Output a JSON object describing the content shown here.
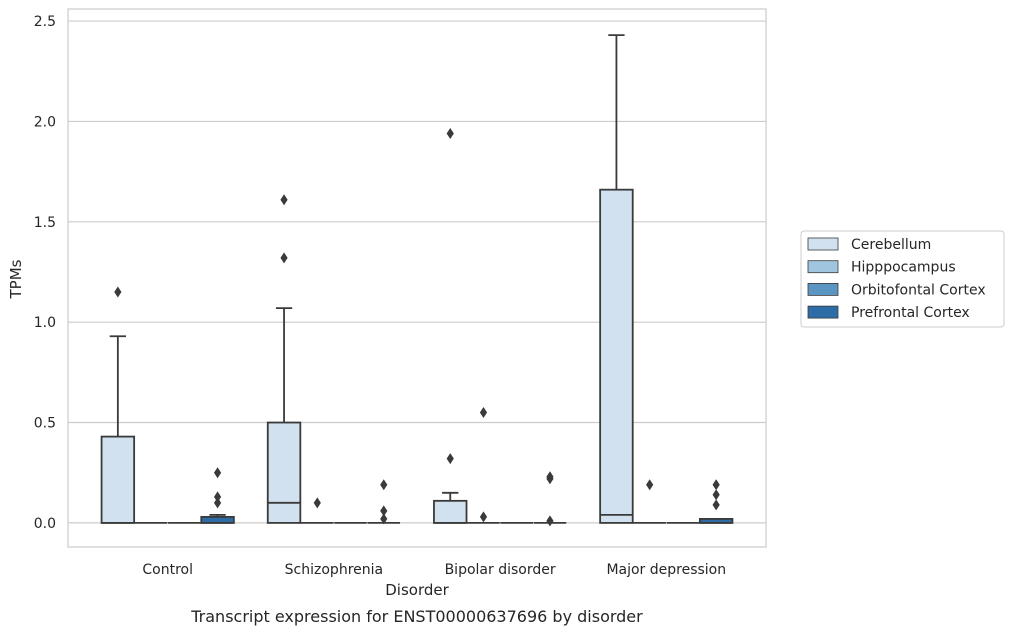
{
  "chart_data": {
    "type": "box",
    "caption": "Transcript expression for ENST00000637696 by disorder",
    "xlabel": "Disorder",
    "ylabel": "TPMs",
    "ylim": [
      -0.12,
      2.56
    ],
    "yticks": [
      0.0,
      0.5,
      1.0,
      1.5,
      2.0,
      2.5
    ],
    "ytick_labels": [
      "0.0",
      "0.5",
      "1.0",
      "1.5",
      "2.0",
      "2.5"
    ],
    "grid": "horizontal",
    "legend_position": "right",
    "categories": [
      "Control",
      "Schizophrenia",
      "Bipolar disorder",
      "Major depression"
    ],
    "series": [
      {
        "name": "Cerebellum",
        "color": "#d1e1ef",
        "boxes": [
          {
            "q1": 0.0,
            "median": 0.0,
            "q3": 0.43,
            "whisker_low": 0.0,
            "whisker_high": 0.93,
            "outliers": [
              1.15
            ]
          },
          {
            "q1": 0.0,
            "median": 0.1,
            "q3": 0.5,
            "whisker_low": 0.0,
            "whisker_high": 1.07,
            "outliers": [
              1.32,
              1.61
            ]
          },
          {
            "q1": 0.0,
            "median": 0.0,
            "q3": 0.11,
            "whisker_low": 0.0,
            "whisker_high": 0.15,
            "outliers": [
              0.32,
              1.94
            ]
          },
          {
            "q1": 0.0,
            "median": 0.04,
            "q3": 1.66,
            "whisker_low": 0.0,
            "whisker_high": 2.43,
            "outliers": []
          }
        ]
      },
      {
        "name": "Hipppocampus",
        "color": "#a0c5de",
        "boxes": [
          {
            "q1": 0.0,
            "median": 0.0,
            "q3": 0.0,
            "whisker_low": 0.0,
            "whisker_high": 0.0,
            "outliers": []
          },
          {
            "q1": 0.0,
            "median": 0.0,
            "q3": 0.0,
            "whisker_low": 0.0,
            "whisker_high": 0.0,
            "outliers": [
              0.1
            ]
          },
          {
            "q1": 0.0,
            "median": 0.0,
            "q3": 0.0,
            "whisker_low": 0.0,
            "whisker_high": 0.0,
            "outliers": [
              0.03,
              0.55
            ]
          },
          {
            "q1": 0.0,
            "median": 0.0,
            "q3": 0.0,
            "whisker_low": 0.0,
            "whisker_high": 0.0,
            "outliers": [
              0.19
            ]
          }
        ]
      },
      {
        "name": "Orbitofontal Cortex",
        "color": "#5b95c2",
        "boxes": [
          {
            "q1": 0.0,
            "median": 0.0,
            "q3": 0.0,
            "whisker_low": 0.0,
            "whisker_high": 0.0,
            "outliers": []
          },
          {
            "q1": 0.0,
            "median": 0.0,
            "q3": 0.0,
            "whisker_low": 0.0,
            "whisker_high": 0.0,
            "outliers": []
          },
          {
            "q1": 0.0,
            "median": 0.0,
            "q3": 0.0,
            "whisker_low": 0.0,
            "whisker_high": 0.0,
            "outliers": []
          },
          {
            "q1": 0.0,
            "median": 0.0,
            "q3": 0.0,
            "whisker_low": 0.0,
            "whisker_high": 0.0,
            "outliers": []
          }
        ]
      },
      {
        "name": "Prefrontal Cortex",
        "color": "#2d6ca6",
        "boxes": [
          {
            "q1": 0.0,
            "median": 0.0,
            "q3": 0.03,
            "whisker_low": 0.0,
            "whisker_high": 0.04,
            "outliers": [
              0.1,
              0.13,
              0.25
            ]
          },
          {
            "q1": 0.0,
            "median": 0.0,
            "q3": 0.0,
            "whisker_low": 0.0,
            "whisker_high": 0.0,
            "outliers": [
              0.02,
              0.06,
              0.19
            ]
          },
          {
            "q1": 0.0,
            "median": 0.0,
            "q3": 0.0,
            "whisker_low": 0.0,
            "whisker_high": 0.0,
            "outliers": [
              0.01,
              0.22,
              0.23
            ]
          },
          {
            "q1": 0.0,
            "median": 0.0,
            "q3": 0.02,
            "whisker_low": 0.0,
            "whisker_high": 0.02,
            "outliers": [
              0.09,
              0.14,
              0.19
            ]
          }
        ]
      }
    ]
  }
}
